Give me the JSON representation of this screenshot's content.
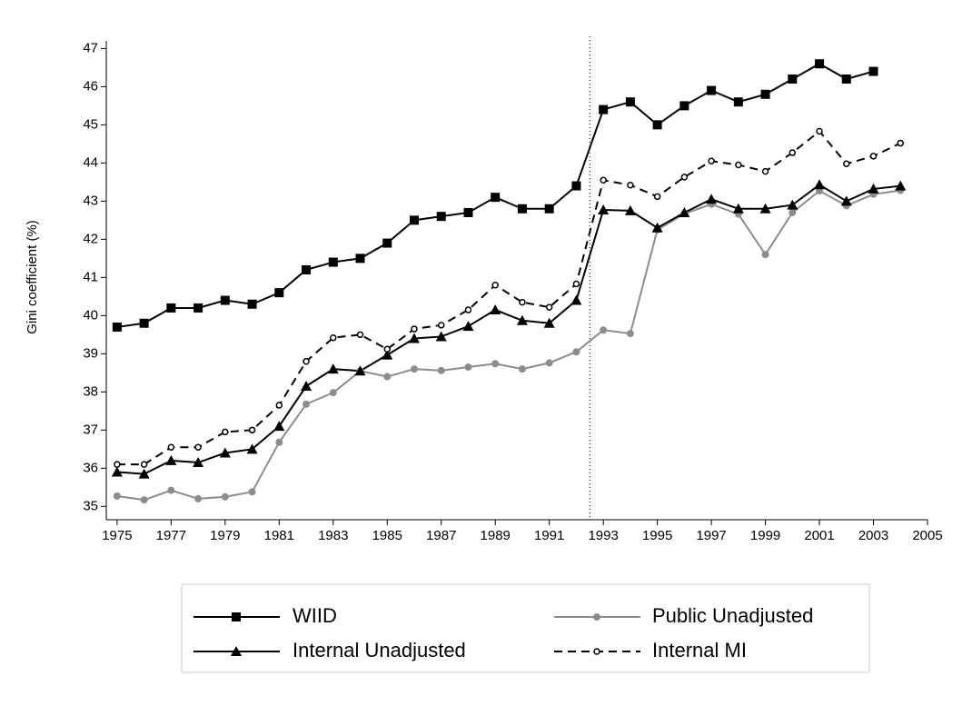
{
  "chart_data": {
    "type": "line",
    "y_label": "Gini coefficient (%)",
    "x": [
      1975,
      1976,
      1977,
      1978,
      1979,
      1980,
      1981,
      1982,
      1983,
      1984,
      1985,
      1986,
      1987,
      1988,
      1989,
      1990,
      1991,
      1992,
      1993,
      1994,
      1995,
      1996,
      1997,
      1998,
      1999,
      2000,
      2001,
      2002,
      2003,
      2004
    ],
    "series": [
      {
        "name": "WIID",
        "color": "#000000",
        "marker": "square",
        "dash": false,
        "values": [
          39.7,
          39.8,
          40.2,
          40.2,
          40.4,
          40.3,
          40.6,
          41.2,
          41.4,
          41.5,
          41.9,
          42.5,
          42.6,
          42.7,
          43.1,
          42.8,
          42.8,
          43.4,
          45.4,
          45.6,
          45.0,
          45.5,
          45.9,
          45.6,
          45.8,
          46.2,
          46.6,
          46.2,
          46.4,
          null
        ]
      },
      {
        "name": "Public Unadjusted",
        "color": "#8c8c8c",
        "marker": "circle",
        "dash": false,
        "values": [
          35.27,
          35.17,
          35.42,
          35.2,
          35.25,
          35.38,
          36.68,
          37.68,
          37.98,
          38.55,
          38.4,
          38.6,
          38.56,
          38.65,
          38.74,
          38.6,
          38.76,
          39.05,
          39.62,
          39.53,
          42.25,
          42.67,
          42.92,
          42.66,
          41.6,
          42.7,
          43.27,
          42.88,
          43.18,
          43.28
        ]
      },
      {
        "name": "Internal Unadjusted",
        "color": "#000000",
        "marker": "triangle",
        "dash": false,
        "values": [
          35.9,
          35.85,
          36.2,
          36.15,
          36.4,
          36.5,
          37.1,
          38.15,
          38.6,
          38.55,
          38.97,
          39.4,
          39.45,
          39.72,
          40.15,
          39.87,
          39.8,
          40.4,
          42.77,
          42.75,
          42.3,
          42.7,
          43.05,
          42.8,
          42.8,
          42.9,
          43.43,
          43.0,
          43.32,
          43.4
        ]
      },
      {
        "name": "Internal MI",
        "color": "#000000",
        "marker": "hollow-circle",
        "dash": true,
        "values": [
          36.1,
          36.1,
          36.55,
          36.55,
          36.95,
          37.0,
          37.65,
          38.8,
          39.42,
          39.5,
          39.12,
          39.65,
          39.75,
          40.15,
          40.8,
          40.35,
          40.22,
          40.83,
          43.55,
          43.42,
          43.12,
          43.63,
          44.05,
          43.95,
          43.78,
          44.27,
          44.83,
          43.98,
          44.18,
          44.52
        ]
      }
    ],
    "reference_line_x": 1992.5,
    "xlim": [
      1974.6,
      2005
    ],
    "xticks": [
      1975,
      1977,
      1979,
      1981,
      1983,
      1985,
      1987,
      1989,
      1991,
      1993,
      1995,
      1997,
      1999,
      2001,
      2003,
      2005
    ],
    "ylim": [
      34.65,
      47.2
    ],
    "yticks": [
      35,
      36,
      37,
      38,
      39,
      40,
      41,
      42,
      43,
      44,
      45,
      46,
      47
    ],
    "legend": "bottom"
  }
}
